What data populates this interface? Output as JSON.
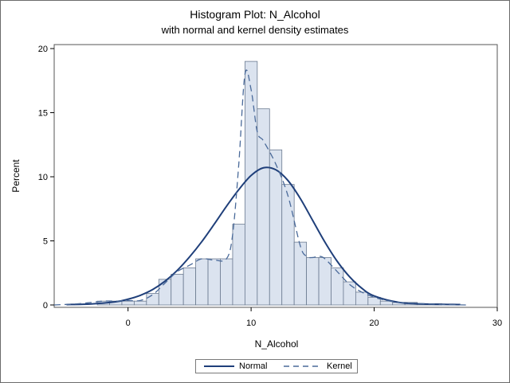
{
  "chart_data": {
    "type": "bar",
    "title": "Histogram Plot: N_Alcohol",
    "subtitle": "with normal and kernel density estimates",
    "xlabel": "N_Alcohol",
    "ylabel": "Percent",
    "xlim": [
      -6,
      30
    ],
    "ylim": [
      0,
      20
    ],
    "xticks": [
      0,
      10,
      20,
      30
    ],
    "yticks": [
      0,
      5,
      10,
      15,
      20
    ],
    "bin_width": 1,
    "bins": [
      {
        "x": -2,
        "value": 0.3
      },
      {
        "x": -1,
        "value": 0.3
      },
      {
        "x": 0,
        "value": 0.3
      },
      {
        "x": 1,
        "value": 0.3
      },
      {
        "x": 2,
        "value": 0.9
      },
      {
        "x": 3,
        "value": 2.0
      },
      {
        "x": 4,
        "value": 2.4
      },
      {
        "x": 5,
        "value": 2.9
      },
      {
        "x": 6,
        "value": 3.6
      },
      {
        "x": 7,
        "value": 3.6
      },
      {
        "x": 8,
        "value": 3.6
      },
      {
        "x": 9,
        "value": 6.3
      },
      {
        "x": 10,
        "value": 19.0
      },
      {
        "x": 11,
        "value": 15.3
      },
      {
        "x": 12,
        "value": 12.1
      },
      {
        "x": 13,
        "value": 9.4
      },
      {
        "x": 14,
        "value": 4.9
      },
      {
        "x": 15,
        "value": 3.7
      },
      {
        "x": 16,
        "value": 3.7
      },
      {
        "x": 17,
        "value": 2.9
      },
      {
        "x": 18,
        "value": 1.8
      },
      {
        "x": 19,
        "value": 1.0
      },
      {
        "x": 20,
        "value": 0.6
      },
      {
        "x": 21,
        "value": 0.3
      },
      {
        "x": 22,
        "value": 0.2
      },
      {
        "x": 23,
        "value": 0.2
      },
      {
        "x": 24,
        "value": 0.1
      },
      {
        "x": 25,
        "value": 0.1
      }
    ],
    "series": [
      {
        "name": "Normal",
        "style": "solid",
        "color": "#1f3f7a",
        "x": [
          -5,
          -3,
          -1,
          0,
          1,
          2,
          3,
          4,
          5,
          6,
          7,
          8,
          9,
          10,
          11,
          12,
          13,
          14,
          15,
          16,
          17,
          18,
          19,
          20,
          22,
          24,
          27
        ],
        "y": [
          0.03,
          0.08,
          0.25,
          0.45,
          0.75,
          1.2,
          1.85,
          2.7,
          3.75,
          4.95,
          6.3,
          7.7,
          9.0,
          10.1,
          10.7,
          10.55,
          9.7,
          8.3,
          6.6,
          4.9,
          3.4,
          2.2,
          1.3,
          0.7,
          0.2,
          0.08,
          0.03
        ]
      },
      {
        "name": "Kernel",
        "style": "dashed",
        "color": "#4a6a9a",
        "x": [
          -6,
          -4,
          -2,
          -1,
          0,
          1,
          2,
          3,
          4,
          5,
          6,
          7,
          8,
          8.5,
          9,
          9.5,
          10,
          10.5,
          11,
          12,
          13,
          14,
          14.5,
          15,
          15.5,
          16,
          17,
          18,
          19,
          20,
          21,
          22,
          23,
          24,
          25,
          26,
          27.5
        ],
        "y": [
          0,
          0.1,
          0.3,
          0.3,
          0.35,
          0.35,
          0.8,
          1.7,
          2.6,
          3.1,
          3.6,
          3.5,
          3.6,
          5.5,
          11.0,
          18.0,
          16.8,
          13.5,
          12.8,
          11.0,
          8.5,
          4.6,
          3.8,
          3.7,
          3.8,
          3.6,
          2.6,
          1.6,
          1.0,
          0.6,
          0.35,
          0.2,
          0.15,
          0.1,
          0.05,
          0.02,
          0
        ]
      }
    ],
    "legend_position": "bottom",
    "grid": false
  },
  "legend": {
    "normal_label": "Normal",
    "kernel_label": "Kernel"
  }
}
